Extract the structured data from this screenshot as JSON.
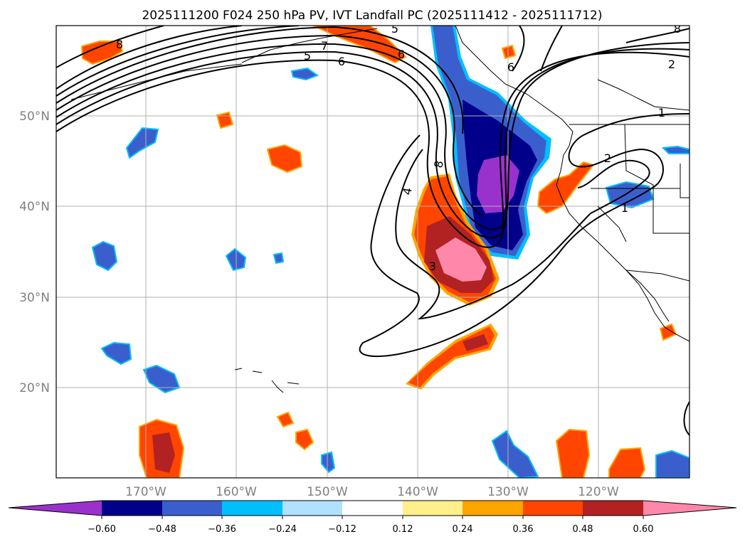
{
  "title": "2025111200 F024 250 hPa PV, IVT Landfall PC (2025111412 - 2025111712)",
  "map": {
    "lat_ticks": [
      "50°N",
      "40°N",
      "30°N",
      "20°N"
    ],
    "lon_ticks": [
      "170°W",
      "160°W",
      "150°W",
      "140°W",
      "130°W",
      "120°W"
    ]
  },
  "colorbar": {
    "colors": [
      "#9932cc",
      "#00008b",
      "#3a5fcd",
      "#00bfff",
      "#b0e2ff",
      "#ffffff",
      "#fff08c",
      "#ffa500",
      "#ff4500",
      "#b22222",
      "#ff88aa"
    ],
    "tick_labels": [
      "−0.60",
      "−0.48",
      "−0.36",
      "−0.24",
      "−0.12",
      "0.12",
      "0.24",
      "0.36",
      "0.48",
      "0.60"
    ]
  },
  "contour_labels": [
    "8",
    "5",
    "7",
    "6",
    "6",
    "5",
    "8",
    "2",
    "1",
    "2",
    "1",
    "4",
    "8",
    "3",
    "6"
  ],
  "colors": {
    "pos_high": "#ff88aa",
    "pos_mid": "#b22222",
    "pos_low": "#ff4500",
    "pos_edge": "#ffa500",
    "pos_faint": "#fff08c",
    "neg_strong": "#9932cc",
    "neg_mid": "#00008b",
    "neg_low": "#3a5fcd",
    "neg_edge": "#00bfff",
    "grid": "#b0b0b0"
  }
}
